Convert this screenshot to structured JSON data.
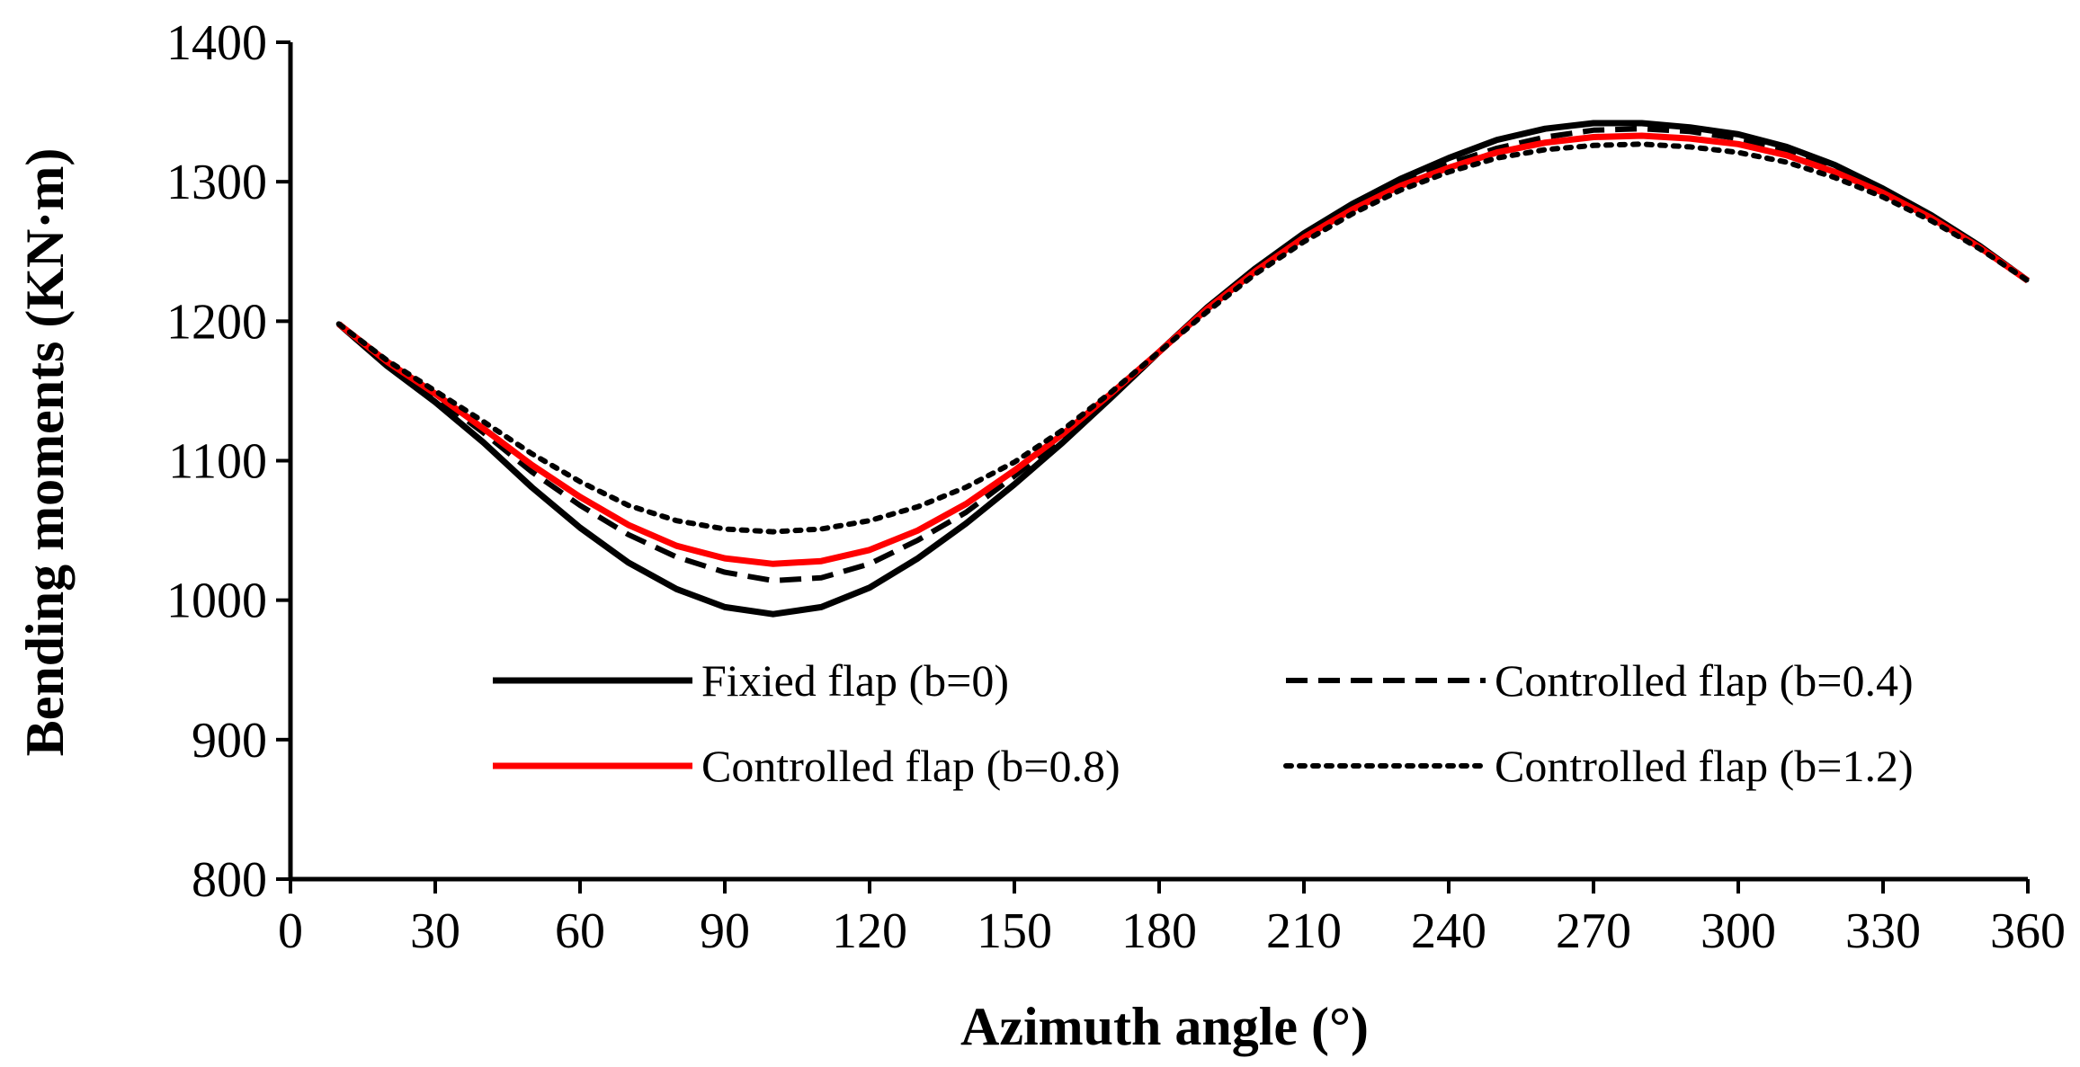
{
  "chart_data": {
    "type": "line",
    "title": "",
    "xlabel": "Azimuth angle (°)",
    "ylabel": "Bending moments (KN·m)",
    "xlim": [
      0,
      360
    ],
    "ylim": [
      800,
      1400
    ],
    "xticks": [
      0,
      30,
      60,
      90,
      120,
      150,
      180,
      210,
      240,
      270,
      300,
      330,
      360
    ],
    "yticks": [
      800,
      900,
      1000,
      1100,
      1200,
      1300,
      1400
    ],
    "grid": false,
    "legend_position": "bottom-inside",
    "x": [
      10,
      20,
      30,
      40,
      50,
      60,
      70,
      80,
      90,
      100,
      110,
      120,
      130,
      140,
      150,
      160,
      170,
      180,
      190,
      200,
      210,
      220,
      230,
      240,
      250,
      260,
      270,
      280,
      290,
      300,
      310,
      320,
      330,
      340,
      350,
      360
    ],
    "series": [
      {
        "name": "Fixied flap (b=0)",
        "color": "#000000",
        "style": "solid",
        "values": [
          1198,
          1168,
          1142,
          1113,
          1081,
          1052,
          1027,
          1008,
          995,
          990,
          995,
          1009,
          1030,
          1055,
          1083,
          1113,
          1145,
          1178,
          1210,
          1238,
          1263,
          1284,
          1302,
          1317,
          1330,
          1338,
          1342,
          1342,
          1339,
          1334,
          1325,
          1312,
          1295,
          1276,
          1254,
          1229
        ]
      },
      {
        "name": "Controlled flap (b=0.4)",
        "color": "#000000",
        "style": "dashed",
        "values": [
          1198,
          1170,
          1146,
          1120,
          1092,
          1068,
          1047,
          1031,
          1020,
          1014,
          1016,
          1026,
          1043,
          1063,
          1089,
          1116,
          1146,
          1178,
          1209,
          1237,
          1261,
          1282,
          1299,
          1313,
          1324,
          1332,
          1337,
          1338,
          1336,
          1331,
          1323,
          1310,
          1294,
          1275,
          1253,
          1229
        ]
      },
      {
        "name": "Controlled flap (b=0.8)",
        "color": "#ff0000",
        "style": "solid",
        "values": [
          1198,
          1171,
          1148,
          1123,
          1097,
          1074,
          1054,
          1039,
          1030,
          1026,
          1028,
          1036,
          1050,
          1069,
          1093,
          1119,
          1148,
          1178,
          1209,
          1236,
          1260,
          1280,
          1297,
          1310,
          1321,
          1328,
          1332,
          1333,
          1331,
          1327,
          1319,
          1307,
          1292,
          1274,
          1253,
          1229
        ]
      },
      {
        "name": "Controlled flap (b=1.2)",
        "color": "#000000",
        "style": "dotted",
        "values": [
          1198,
          1172,
          1150,
          1128,
          1105,
          1085,
          1068,
          1057,
          1051,
          1049,
          1051,
          1057,
          1067,
          1081,
          1099,
          1122,
          1149,
          1178,
          1207,
          1234,
          1257,
          1277,
          1294,
          1307,
          1317,
          1323,
          1326,
          1327,
          1325,
          1321,
          1314,
          1303,
          1289,
          1272,
          1252,
          1229
        ]
      }
    ]
  }
}
